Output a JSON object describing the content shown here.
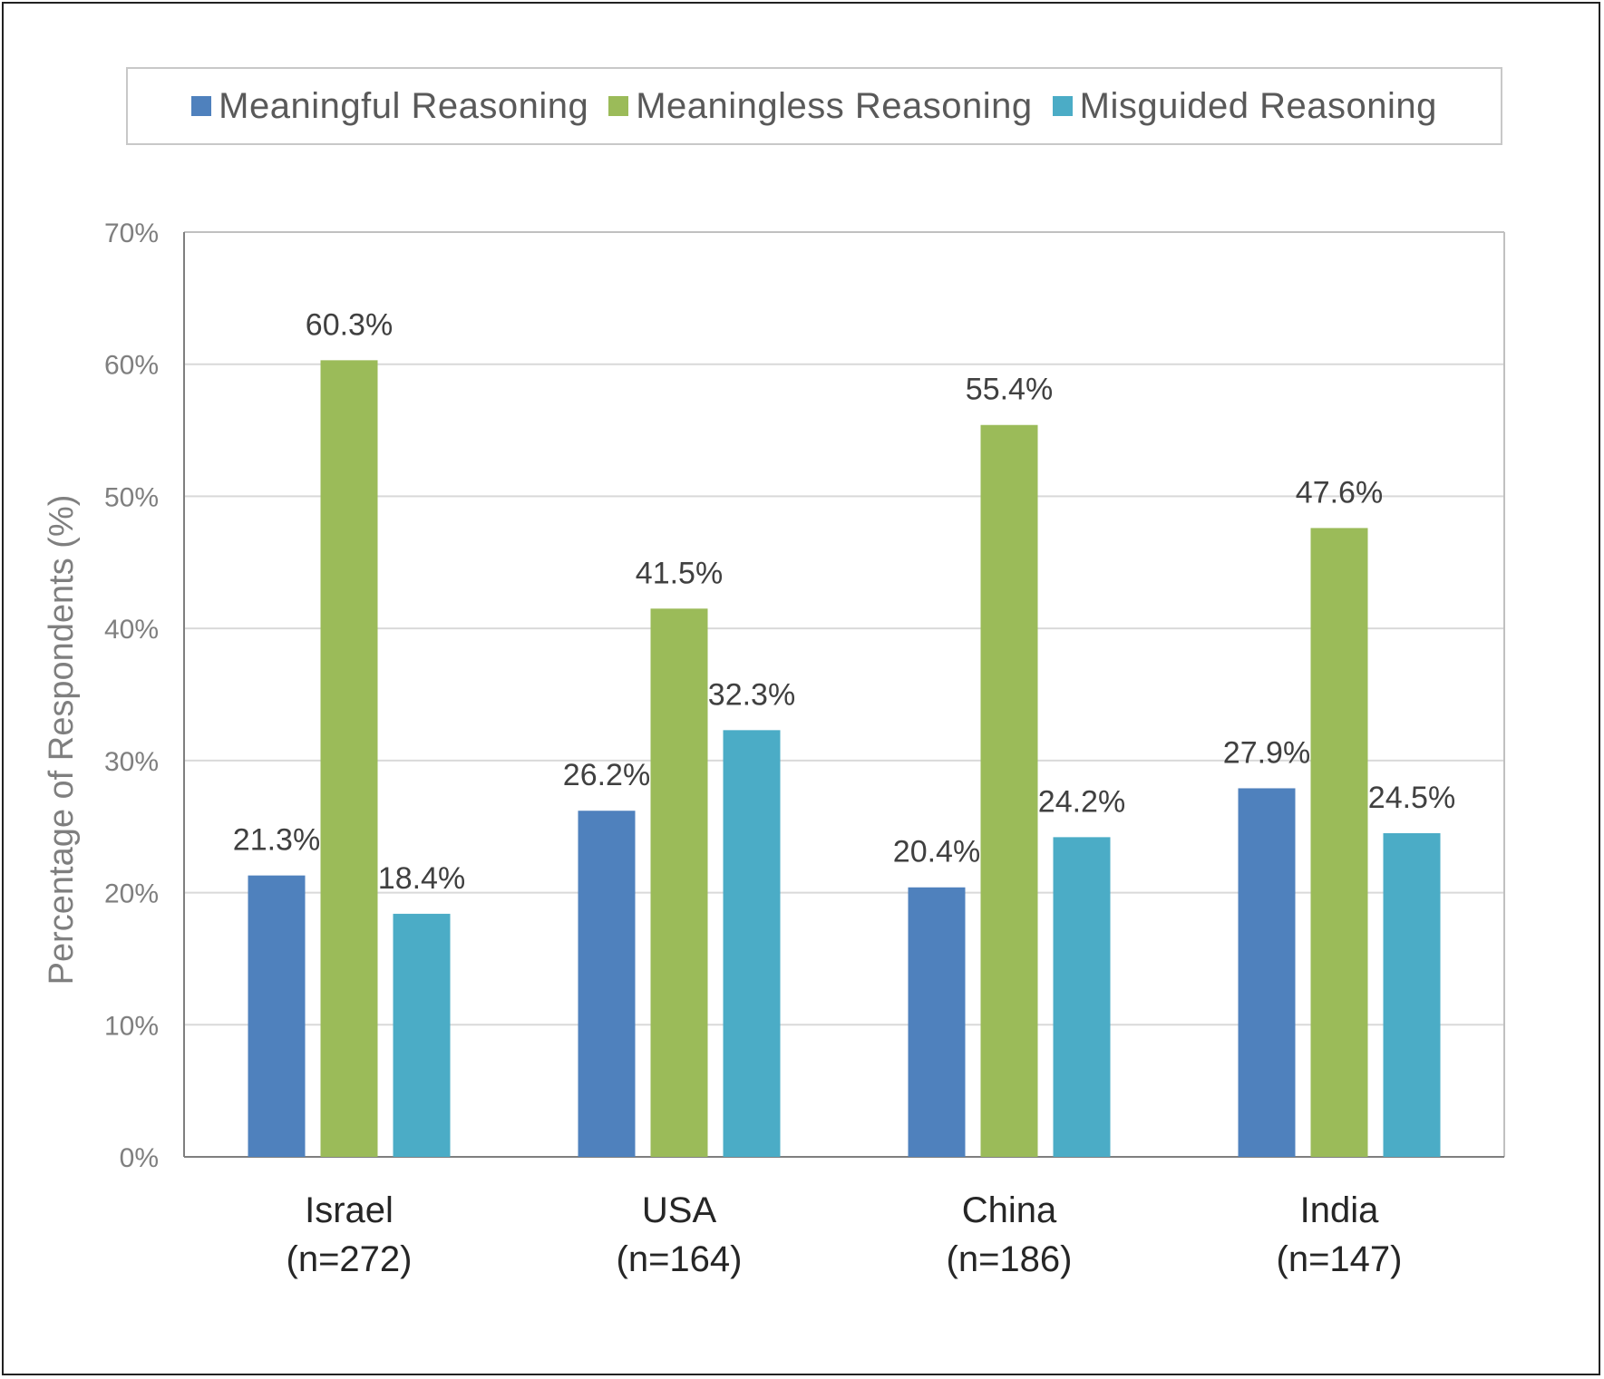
{
  "chart_data": {
    "type": "bar",
    "title": "",
    "xlabel": "",
    "ylabel": "Percentage of Respondents (%)",
    "ylim": [
      0,
      70
    ],
    "yticks": [
      0,
      10,
      20,
      30,
      40,
      50,
      60,
      70
    ],
    "ytick_labels": [
      "0%",
      "10%",
      "20%",
      "30%",
      "40%",
      "50%",
      "60%",
      "70%"
    ],
    "categories": [
      {
        "name": "Israel",
        "n": "(n=272)"
      },
      {
        "name": "USA",
        "n": "(n=164)"
      },
      {
        "name": "China",
        "n": "(n=186)"
      },
      {
        "name": "India",
        "n": "(n=147)"
      }
    ],
    "series": [
      {
        "name": "Meaningful Reasoning",
        "color": "#4f81bd",
        "values": [
          21.3,
          26.2,
          20.4,
          27.9
        ],
        "labels": [
          "21.3%",
          "26.2%",
          "20.4%",
          "27.9%"
        ]
      },
      {
        "name": "Meaningless Reasoning",
        "color": "#9bbb59",
        "values": [
          60.3,
          41.5,
          55.4,
          47.6
        ],
        "labels": [
          "60.3%",
          "41.5%",
          "55.4%",
          "47.6%"
        ]
      },
      {
        "name": "Misguided Reasoning",
        "color": "#4bacc6",
        "values": [
          18.4,
          32.3,
          24.2,
          24.5
        ],
        "labels": [
          "18.4%",
          "32.3%",
          "24.2%",
          "24.5%"
        ]
      }
    ],
    "legend_position": "top",
    "grid": true
  }
}
